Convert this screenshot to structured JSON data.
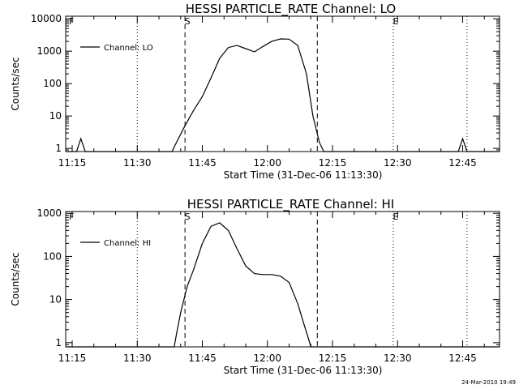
{
  "chart_data": [
    {
      "type": "line",
      "title": "HESSI PARTICLE_RATE Channel: LO",
      "xlabel": "Start Time (31-Dec-06 11:13:30)",
      "ylabel": "Counts/sec",
      "yscale": "log",
      "xlim": [
        0,
        100
      ],
      "ylim": [
        0.8,
        12000
      ],
      "x_tick_labels": [
        "11:15",
        "11:30",
        "11:45",
        "12:00",
        "12:15",
        "12:30",
        "12:45"
      ],
      "x_ticks": [
        1.5,
        16.5,
        31.5,
        46.5,
        61.5,
        76.5,
        91.5
      ],
      "y_tick_labels": [
        "1",
        "10",
        "100",
        "1000",
        "10000"
      ],
      "y_ticks": [
        1,
        10,
        100,
        1000,
        10000
      ],
      "legend": "top-left",
      "grid": false,
      "series": [
        {
          "name": "Channel: LO",
          "x": [
            0,
            2.5,
            3.5,
            4.5,
            5.5,
            24.5,
            25.5,
            27.5,
            29.5,
            31.5,
            33.5,
            35.5,
            37.5,
            39.5,
            41.5,
            43.5,
            45.5,
            47.5,
            49.5,
            51.5,
            53.5,
            55.5,
            57.0,
            58.5,
            59.5,
            90.5,
            91.5,
            92.5,
            93.5,
            100
          ],
          "y": [
            0.8,
            0.8,
            2.0,
            0.8,
            0.8,
            0.8,
            1.5,
            5,
            15,
            40,
            150,
            600,
            1300,
            1500,
            1200,
            950,
            1400,
            2000,
            2400,
            2350,
            1500,
            200,
            10,
            1.5,
            0.8,
            0.8,
            2.0,
            0.8,
            0.8,
            0.8
          ]
        }
      ],
      "vlines": [
        {
          "x": 16.5,
          "style": "dotted",
          "label": ""
        },
        {
          "x": 27.5,
          "style": "dashed",
          "label": "S"
        },
        {
          "x": 58.0,
          "style": "dashed",
          "label": ""
        },
        {
          "x": 75.5,
          "style": "dotted",
          "label": "E"
        },
        {
          "x": 92.5,
          "style": "dotted",
          "label": ""
        }
      ],
      "corner_label": "F"
    },
    {
      "type": "line",
      "title": "HESSI PARTICLE_RATE Channel: HI",
      "xlabel": "Start Time (31-Dec-06 11:13:30)",
      "ylabel": "Counts/sec",
      "yscale": "log",
      "xlim": [
        0,
        100
      ],
      "ylim": [
        0.8,
        1100
      ],
      "x_tick_labels": [
        "11:15",
        "11:30",
        "11:45",
        "12:00",
        "12:15",
        "12:30",
        "12:45"
      ],
      "x_ticks": [
        1.5,
        16.5,
        31.5,
        46.5,
        61.5,
        76.5,
        91.5
      ],
      "y_tick_labels": [
        "1",
        "10",
        "100",
        "1000"
      ],
      "y_ticks": [
        1,
        10,
        100,
        1000
      ],
      "legend": "top-left",
      "grid": false,
      "series": [
        {
          "name": "Channel: HI",
          "x": [
            0,
            25.0,
            25.5,
            26.5,
            28.0,
            29.5,
            31.5,
            33.5,
            35.5,
            37.5,
            39.5,
            41.5,
            43.5,
            45.5,
            47.5,
            49.5,
            51.5,
            53.5,
            55.0,
            56.0,
            56.5,
            100
          ],
          "y": [
            0.8,
            0.8,
            1.5,
            5,
            20,
            50,
            200,
            500,
            600,
            400,
            150,
            60,
            40,
            38,
            38,
            35,
            25,
            8,
            2.5,
            1.2,
            0.8,
            0.8
          ]
        }
      ],
      "vlines": [
        {
          "x": 16.5,
          "style": "dotted",
          "label": ""
        },
        {
          "x": 27.5,
          "style": "dashed",
          "label": "S"
        },
        {
          "x": 58.0,
          "style": "dashed",
          "label": ""
        },
        {
          "x": 75.5,
          "style": "dotted",
          "label": "E"
        },
        {
          "x": 92.5,
          "style": "dotted",
          "label": ""
        }
      ],
      "corner_label": "F"
    }
  ],
  "footer": {
    "timestamp": "24-Mar-2010 19:49"
  }
}
